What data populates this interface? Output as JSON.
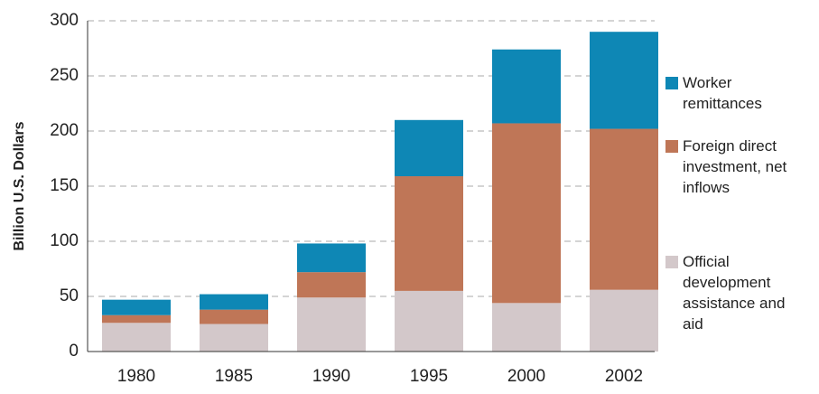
{
  "chart_data": {
    "type": "stacked_bar",
    "ylabel": "Billion U.S. Dollars",
    "categories": [
      "1980",
      "1985",
      "1990",
      "1995",
      "2000",
      "2002"
    ],
    "series": [
      {
        "name": "Official development assistance and aid",
        "color": "#d3c8ca",
        "values": [
          26,
          25,
          49,
          55,
          44,
          56
        ]
      },
      {
        "name": "Foreign direct investment, net inflows",
        "color": "#bf7657",
        "values": [
          7,
          13,
          23,
          104,
          163,
          146
        ]
      },
      {
        "name": "Worker remittances",
        "color": "#0e87b5",
        "values": [
          14,
          14,
          26,
          51,
          67,
          88
        ]
      }
    ],
    "ylim": [
      0,
      300
    ],
    "yticks": [
      0,
      50,
      100,
      150,
      200,
      250,
      300
    ],
    "grid": true
  }
}
